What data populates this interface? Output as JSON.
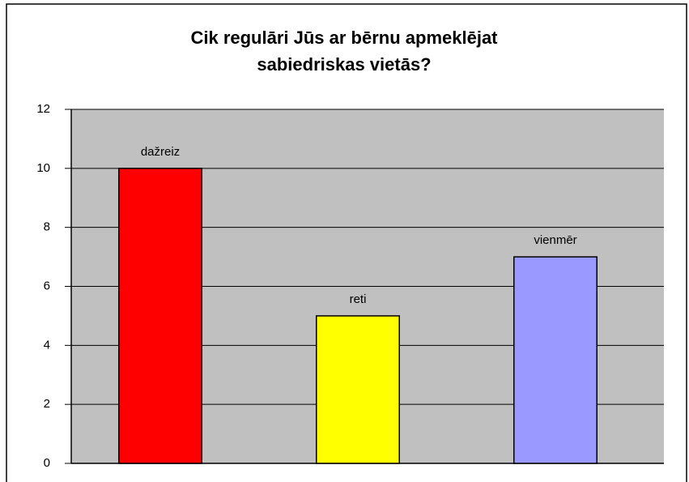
{
  "chart_data": {
    "type": "bar",
    "title": "Cik regulāri Jūs ar bērnu apmeklējat sabiedriskas vietās?",
    "categories": [
      "dažreiz",
      "reti",
      "vienmēr"
    ],
    "values": [
      10,
      5,
      7
    ],
    "colors": [
      "#ff0000",
      "#ffff00",
      "#9999ff"
    ],
    "ylim": [
      0,
      12
    ],
    "yticks": [
      0,
      2,
      4,
      6,
      8,
      10,
      12
    ],
    "grid": true
  }
}
